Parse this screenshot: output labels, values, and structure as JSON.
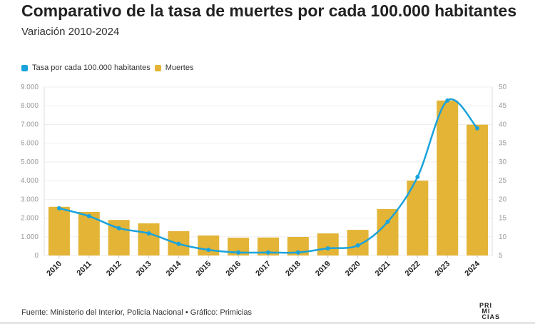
{
  "title": "Comparativo de la tasa de muertes por cada 100.000 habitantes",
  "subtitle": "Variación 2010-2024",
  "source": "Fuente: Ministerio del Interior, Policía Nacional • Gráfico: Primicias",
  "logo": "PRIMICIAS",
  "chart_data": {
    "type": "bar",
    "categories": [
      "2010",
      "2011",
      "2012",
      "2013",
      "2014",
      "2015",
      "2016",
      "2017",
      "2018",
      "2019",
      "2020",
      "2021",
      "2022",
      "2023",
      "2024"
    ],
    "series": [
      {
        "name": "Tasa por cada 100.000 habitantes",
        "type": "line",
        "axis": "right",
        "color": "#1aa3dc",
        "values": [
          17.6,
          15.5,
          12.3,
          10.9,
          8.1,
          6.5,
          5.8,
          5.8,
          5.8,
          6.9,
          7.7,
          14.0,
          26.0,
          46.4,
          39.0
        ]
      },
      {
        "name": "Muertes",
        "type": "bar",
        "axis": "left",
        "color": "#e3b436",
        "values": [
          2600,
          2330,
          1900,
          1720,
          1300,
          1070,
          950,
          960,
          990,
          1180,
          1370,
          2480,
          4000,
          8280,
          6990
        ]
      }
    ],
    "y_left": {
      "range": [
        0,
        9000
      ],
      "ticks": [
        "0",
        "1.000",
        "2.000",
        "3.000",
        "4.000",
        "5.000",
        "6.000",
        "7.000",
        "8.000",
        "9.000"
      ]
    },
    "y_right": {
      "range": [
        5,
        50
      ],
      "ticks": [
        "5",
        "10",
        "15",
        "20",
        "25",
        "30",
        "35",
        "40",
        "45",
        "50"
      ]
    },
    "grid": true,
    "legend": "top-left"
  }
}
